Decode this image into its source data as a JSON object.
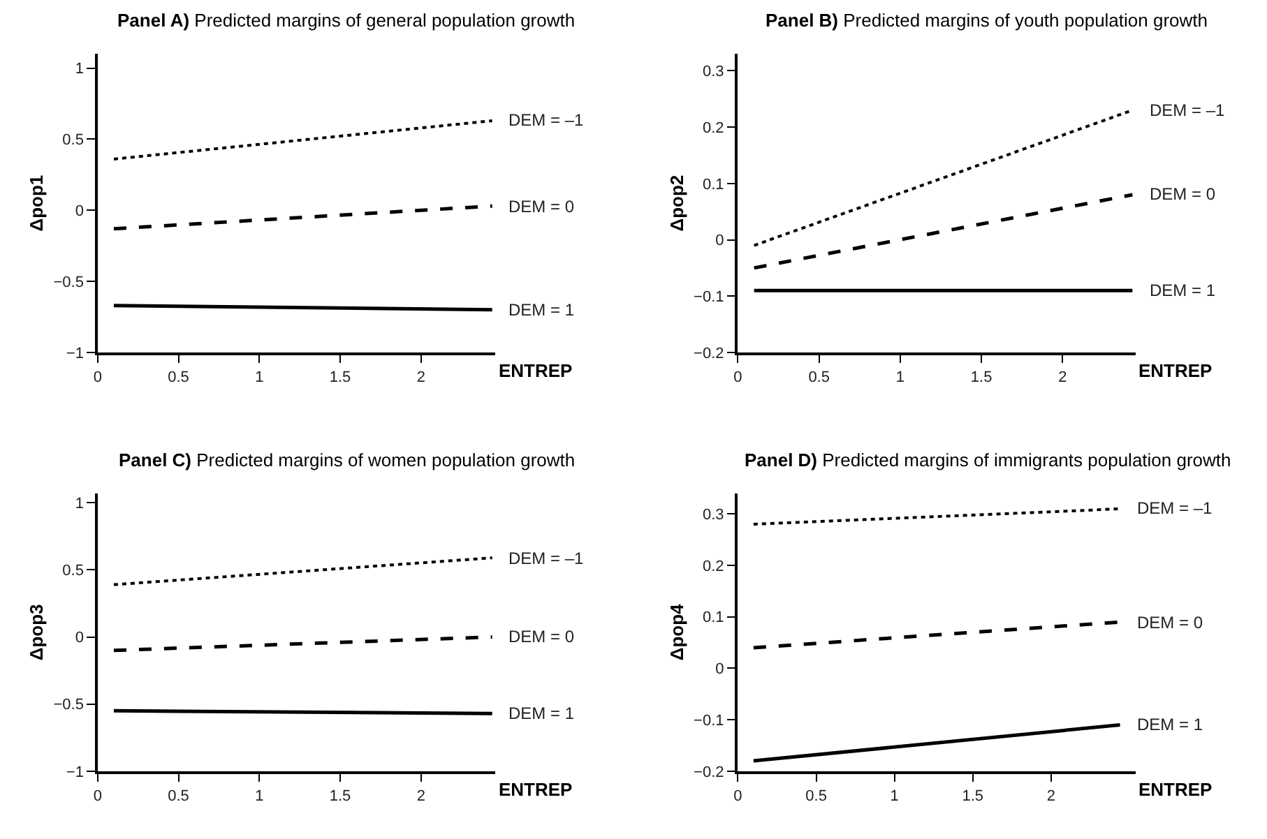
{
  "chart_data": [
    {
      "type": "line",
      "title": "Panel A) Predicted margins of general population growth",
      "xlabel": "ENTREP",
      "ylabel": "Δpop1",
      "xlim": [
        0,
        2.46
      ],
      "xticks": [
        0,
        0.5,
        1,
        1.5,
        2
      ],
      "ylim": [
        -1,
        1.1
      ],
      "yticks": [
        -1,
        -0.5,
        0,
        0.5,
        1
      ],
      "series": [
        {
          "name": "DEM = –1",
          "color": "#000000",
          "line_style": "dotted",
          "x": [
            0.1,
            2.44
          ],
          "values": [
            0.36,
            0.63
          ]
        },
        {
          "name": "DEM = 0",
          "color": "#000000",
          "line_style": "dashed",
          "x": [
            0.1,
            2.44
          ],
          "values": [
            -0.13,
            0.03
          ]
        },
        {
          "name": "DEM = 1",
          "color": "#000000",
          "line_style": "solid",
          "x": [
            0.1,
            2.44
          ],
          "values": [
            -0.67,
            -0.7
          ]
        }
      ]
    },
    {
      "type": "line",
      "title": "Panel B) Predicted margins of youth population growth",
      "xlabel": "ENTREP",
      "ylabel": "Δpop2",
      "xlim": [
        0,
        2.45
      ],
      "xticks": [
        0,
        0.5,
        1,
        1.5,
        2
      ],
      "ylim": [
        -0.2,
        0.33
      ],
      "yticks": [
        -0.2,
        -0.1,
        0,
        0.1,
        0.2,
        0.3
      ],
      "series": [
        {
          "name": "DEM = –1",
          "color": "#000000",
          "line_style": "dotted",
          "x": [
            0.1,
            2.43
          ],
          "values": [
            -0.01,
            0.23
          ]
        },
        {
          "name": "DEM = 0",
          "color": "#000000",
          "line_style": "dashed",
          "x": [
            0.1,
            2.43
          ],
          "values": [
            -0.05,
            0.08
          ]
        },
        {
          "name": "DEM = 1",
          "color": "#000000",
          "line_style": "solid",
          "x": [
            0.1,
            2.43
          ],
          "values": [
            -0.09,
            -0.09
          ]
        }
      ]
    },
    {
      "type": "line",
      "title": "Panel C) Predicted margins of women population growth",
      "xlabel": "ENTREP",
      "ylabel": "Δpop3",
      "xlim": [
        0,
        2.46
      ],
      "xticks": [
        0,
        0.5,
        1,
        1.5,
        2
      ],
      "ylim": [
        -1,
        1.07
      ],
      "yticks": [
        -1,
        -0.5,
        0,
        0.5,
        1
      ],
      "series": [
        {
          "name": "DEM = –1",
          "color": "#000000",
          "line_style": "dotted",
          "x": [
            0.1,
            2.44
          ],
          "values": [
            0.39,
            0.59
          ]
        },
        {
          "name": "DEM = 0",
          "color": "#000000",
          "line_style": "dashed",
          "x": [
            0.1,
            2.44
          ],
          "values": [
            -0.1,
            0.0
          ]
        },
        {
          "name": "DEM = 1",
          "color": "#000000",
          "line_style": "solid",
          "x": [
            0.1,
            2.44
          ],
          "values": [
            -0.55,
            -0.57
          ]
        }
      ]
    },
    {
      "type": "line",
      "title": "Panel D) Predicted margins of immigrants population growth",
      "xlabel": "ENTREP",
      "ylabel": "Δpop4",
      "xlim": [
        0,
        2.54
      ],
      "xticks": [
        0,
        0.5,
        1,
        1.5,
        2
      ],
      "ylim": [
        -0.2,
        0.34
      ],
      "yticks": [
        -0.2,
        -0.1,
        0,
        0.1,
        0.2,
        0.3
      ],
      "series": [
        {
          "name": "DEM = –1",
          "color": "#000000",
          "line_style": "dotted",
          "x": [
            0.1,
            2.44
          ],
          "values": [
            0.28,
            0.31
          ]
        },
        {
          "name": "DEM = 0",
          "color": "#000000",
          "line_style": "dashed",
          "x": [
            0.1,
            2.44
          ],
          "values": [
            0.04,
            0.09
          ]
        },
        {
          "name": "DEM = 1",
          "color": "#000000",
          "line_style": "solid",
          "x": [
            0.1,
            2.44
          ],
          "values": [
            -0.18,
            -0.11
          ]
        }
      ]
    }
  ]
}
